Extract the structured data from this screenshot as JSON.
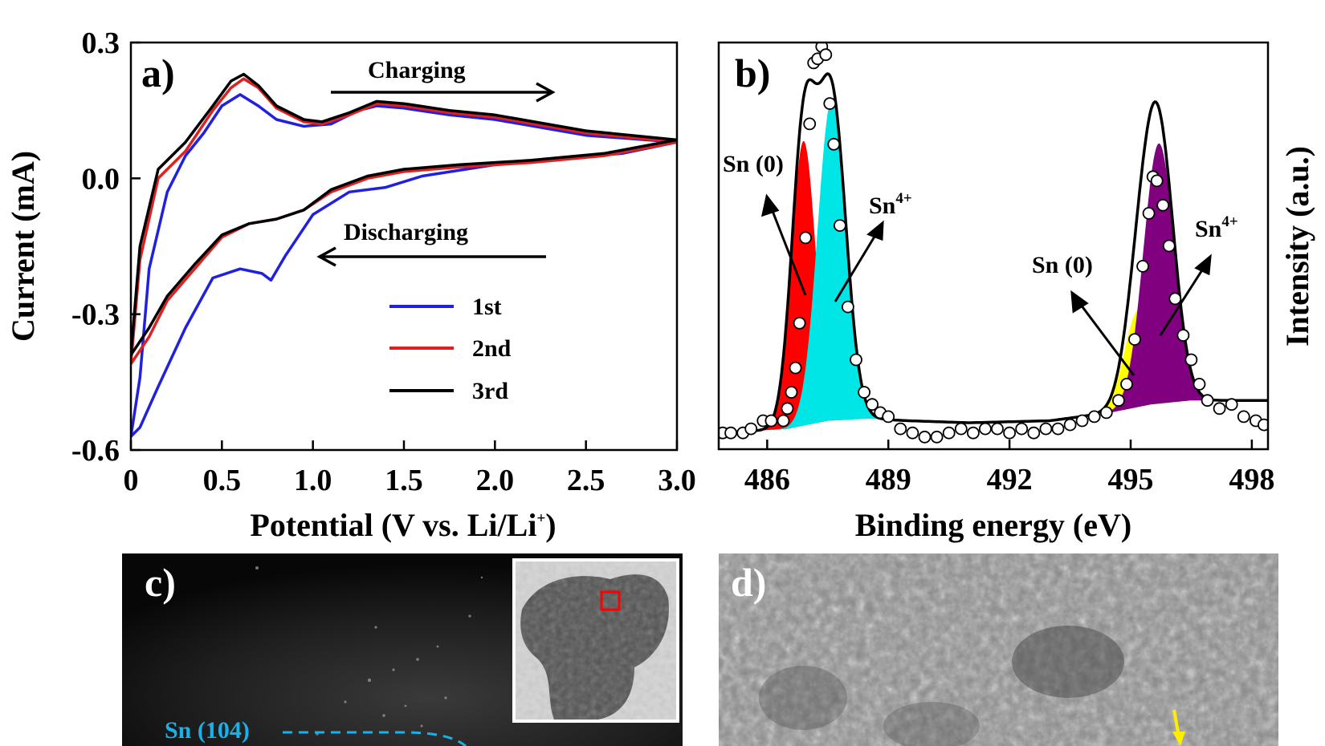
{
  "chart_data": [
    {
      "panel": "a)",
      "type": "line",
      "xlabel": "Potential (V vs. Li/Li",
      "xlabel_sup": "+",
      "xlabel_end": ")",
      "ylabel": "Current (mA)",
      "xlim": [
        0,
        3.0
      ],
      "ylim": [
        -0.6,
        0.3
      ],
      "xticks": [
        "0",
        "0.5",
        "1.0",
        "1.5",
        "2.0",
        "2.5",
        "3.0"
      ],
      "yticks": [
        "0.3",
        "0.0",
        "-0.3",
        "-0.6"
      ],
      "annotations": {
        "charging": "Charging",
        "discharging": "Discharging"
      },
      "series": [
        {
          "name": "1st",
          "color": "#2020e0",
          "anodic": [
            [
              0.0,
              -0.57
            ],
            [
              0.05,
              -0.44
            ],
            [
              0.1,
              -0.2
            ],
            [
              0.2,
              -0.03
            ],
            [
              0.3,
              0.05
            ],
            [
              0.4,
              0.1
            ],
            [
              0.5,
              0.16
            ],
            [
              0.6,
              0.185
            ],
            [
              0.7,
              0.16
            ],
            [
              0.8,
              0.13
            ],
            [
              0.95,
              0.115
            ],
            [
              1.1,
              0.12
            ],
            [
              1.25,
              0.15
            ],
            [
              1.35,
              0.16
            ],
            [
              1.5,
              0.155
            ],
            [
              1.75,
              0.14
            ],
            [
              2.0,
              0.13
            ],
            [
              2.5,
              0.095
            ],
            [
              3.0,
              0.08
            ]
          ],
          "cathodic": [
            [
              3.0,
              0.08
            ],
            [
              2.7,
              0.055
            ],
            [
              2.4,
              0.045
            ],
            [
              2.0,
              0.03
            ],
            [
              1.6,
              0.005
            ],
            [
              1.4,
              -0.02
            ],
            [
              1.2,
              -0.03
            ],
            [
              1.0,
              -0.08
            ],
            [
              0.85,
              -0.17
            ],
            [
              0.77,
              -0.225
            ],
            [
              0.72,
              -0.21
            ],
            [
              0.6,
              -0.2
            ],
            [
              0.45,
              -0.22
            ],
            [
              0.3,
              -0.33
            ],
            [
              0.15,
              -0.46
            ],
            [
              0.05,
              -0.55
            ],
            [
              0.0,
              -0.57
            ]
          ]
        },
        {
          "name": "2nd",
          "color": "#e02020",
          "anodic": [
            [
              0.0,
              -0.41
            ],
            [
              0.05,
              -0.18
            ],
            [
              0.15,
              0.0
            ],
            [
              0.3,
              0.06
            ],
            [
              0.45,
              0.15
            ],
            [
              0.55,
              0.2
            ],
            [
              0.62,
              0.22
            ],
            [
              0.7,
              0.2
            ],
            [
              0.8,
              0.155
            ],
            [
              0.95,
              0.125
            ],
            [
              1.05,
              0.12
            ],
            [
              1.2,
              0.14
            ],
            [
              1.35,
              0.165
            ],
            [
              1.5,
              0.16
            ],
            [
              1.75,
              0.145
            ],
            [
              2.0,
              0.135
            ],
            [
              2.5,
              0.1
            ],
            [
              3.0,
              0.08
            ]
          ],
          "cathodic": [
            [
              3.0,
              0.08
            ],
            [
              2.6,
              0.05
            ],
            [
              2.2,
              0.035
            ],
            [
              1.8,
              0.025
            ],
            [
              1.5,
              0.015
            ],
            [
              1.3,
              0.0
            ],
            [
              1.1,
              -0.03
            ],
            [
              0.95,
              -0.07
            ],
            [
              0.8,
              -0.09
            ],
            [
              0.65,
              -0.1
            ],
            [
              0.5,
              -0.13
            ],
            [
              0.35,
              -0.2
            ],
            [
              0.2,
              -0.27
            ],
            [
              0.1,
              -0.35
            ],
            [
              0.0,
              -0.41
            ]
          ]
        },
        {
          "name": "3rd",
          "color": "#000000",
          "anodic": [
            [
              0.0,
              -0.39
            ],
            [
              0.05,
              -0.15
            ],
            [
              0.15,
              0.02
            ],
            [
              0.3,
              0.08
            ],
            [
              0.45,
              0.16
            ],
            [
              0.55,
              0.215
            ],
            [
              0.62,
              0.23
            ],
            [
              0.7,
              0.205
            ],
            [
              0.8,
              0.16
            ],
            [
              0.95,
              0.13
            ],
            [
              1.05,
              0.125
            ],
            [
              1.2,
              0.145
            ],
            [
              1.35,
              0.17
            ],
            [
              1.5,
              0.165
            ],
            [
              1.75,
              0.15
            ],
            [
              2.0,
              0.14
            ],
            [
              2.5,
              0.105
            ],
            [
              3.0,
              0.085
            ]
          ],
          "cathodic": [
            [
              3.0,
              0.085
            ],
            [
              2.6,
              0.055
            ],
            [
              2.2,
              0.04
            ],
            [
              1.8,
              0.03
            ],
            [
              1.5,
              0.02
            ],
            [
              1.3,
              0.005
            ],
            [
              1.1,
              -0.025
            ],
            [
              0.95,
              -0.07
            ],
            [
              0.8,
              -0.09
            ],
            [
              0.65,
              -0.1
            ],
            [
              0.5,
              -0.125
            ],
            [
              0.35,
              -0.19
            ],
            [
              0.2,
              -0.26
            ],
            [
              0.1,
              -0.33
            ],
            [
              0.0,
              -0.39
            ]
          ]
        }
      ]
    },
    {
      "panel": "b)",
      "type": "area",
      "xlabel": "Binding energy (eV)",
      "ylabel": "Intensity (a.u.)",
      "xlim": [
        484.8,
        498.4
      ],
      "ylim": [
        0,
        1.0
      ],
      "xticks": [
        "486",
        "489",
        "492",
        "495",
        "498"
      ],
      "annotations": {
        "sn0_a": "Sn (0)",
        "sn4_a": "Sn",
        "sn0_b": "Sn (0)",
        "sn4_b": "Sn",
        "sup": "4+"
      },
      "baseline": [
        [
          484.8,
          0.04
        ],
        [
          486.5,
          0.05
        ],
        [
          487.5,
          0.07
        ],
        [
          488.5,
          0.075
        ],
        [
          489.5,
          0.07
        ],
        [
          491,
          0.065
        ],
        [
          493,
          0.07
        ],
        [
          494.5,
          0.09
        ],
        [
          495.5,
          0.11
        ],
        [
          496.5,
          0.12
        ],
        [
          498.4,
          0.12
        ]
      ],
      "components": [
        {
          "name": "Sn (0)",
          "color": "#ff0000",
          "center": 486.9,
          "height": 0.7,
          "width": 0.3
        },
        {
          "name": "Sn4+",
          "color": "#00e5e5",
          "center": 487.6,
          "height": 0.79,
          "width": 0.35
        },
        {
          "name": "Sn (0)",
          "color": "#ffff00",
          "center": 495.2,
          "height": 0.24,
          "width": 0.35
        },
        {
          "name": "Sn4+",
          "color": "#800080",
          "center": 495.7,
          "height": 0.64,
          "width": 0.38
        }
      ],
      "envelope_color": "#000000",
      "data_points": [
        [
          484.9,
          0.04
        ],
        [
          485.1,
          0.04
        ],
        [
          485.4,
          0.04
        ],
        [
          485.6,
          0.05
        ],
        [
          485.9,
          0.07
        ],
        [
          486.1,
          0.07
        ],
        [
          486.4,
          0.07
        ],
        [
          486.5,
          0.1
        ],
        [
          486.6,
          0.14
        ],
        [
          486.7,
          0.2
        ],
        [
          486.8,
          0.31
        ],
        [
          486.95,
          0.52
        ],
        [
          487.05,
          0.8
        ],
        [
          487.15,
          0.95
        ],
        [
          487.25,
          0.96
        ],
        [
          487.35,
          0.99
        ],
        [
          487.45,
          0.97
        ],
        [
          487.55,
          0.85
        ],
        [
          487.65,
          0.75
        ],
        [
          487.8,
          0.55
        ],
        [
          488.0,
          0.35
        ],
        [
          488.2,
          0.22
        ],
        [
          488.4,
          0.14
        ],
        [
          488.6,
          0.11
        ],
        [
          488.8,
          0.09
        ],
        [
          489.0,
          0.08
        ],
        [
          489.3,
          0.05
        ],
        [
          489.6,
          0.04
        ],
        [
          489.9,
          0.03
        ],
        [
          490.2,
          0.03
        ],
        [
          490.5,
          0.04
        ],
        [
          490.8,
          0.05
        ],
        [
          491.1,
          0.04
        ],
        [
          491.4,
          0.05
        ],
        [
          491.7,
          0.05
        ],
        [
          492.0,
          0.04
        ],
        [
          492.3,
          0.05
        ],
        [
          492.6,
          0.04
        ],
        [
          492.9,
          0.05
        ],
        [
          493.2,
          0.05
        ],
        [
          493.5,
          0.06
        ],
        [
          493.8,
          0.07
        ],
        [
          494.1,
          0.08
        ],
        [
          494.4,
          0.09
        ],
        [
          494.7,
          0.12
        ],
        [
          494.9,
          0.16
        ],
        [
          495.1,
          0.27
        ],
        [
          495.3,
          0.45
        ],
        [
          495.45,
          0.58
        ],
        [
          495.55,
          0.67
        ],
        [
          495.65,
          0.66
        ],
        [
          495.8,
          0.6
        ],
        [
          495.95,
          0.5
        ],
        [
          496.1,
          0.37
        ],
        [
          496.3,
          0.28
        ],
        [
          496.5,
          0.22
        ],
        [
          496.7,
          0.16
        ],
        [
          496.9,
          0.12
        ],
        [
          497.2,
          0.1
        ],
        [
          497.5,
          0.11
        ],
        [
          497.8,
          0.08
        ],
        [
          498.1,
          0.07
        ],
        [
          498.3,
          0.06
        ]
      ]
    },
    {
      "panel": "c)",
      "type": "image",
      "label": "Sn (104)"
    },
    {
      "panel": "d)",
      "type": "image"
    }
  ]
}
